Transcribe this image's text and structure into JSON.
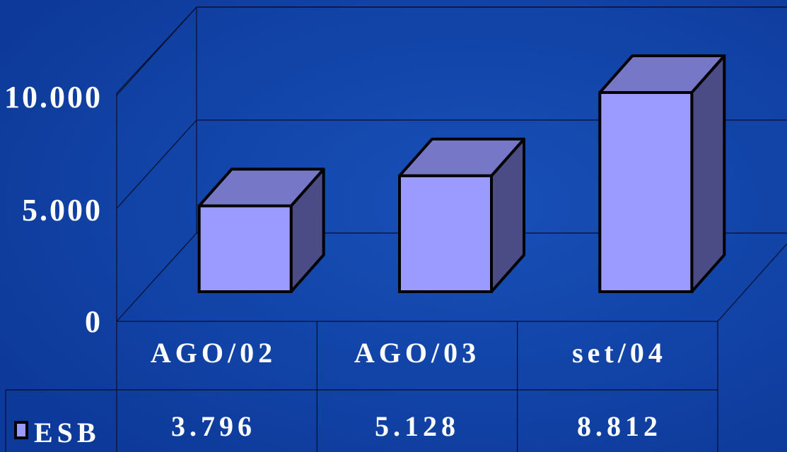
{
  "chart_data": {
    "type": "bar",
    "categories": [
      "AGO/02",
      "AGO/03",
      "set/04"
    ],
    "series": [
      {
        "name": "ESB",
        "values": [
          3796,
          5128,
          8812
        ]
      }
    ],
    "y_tick_labels": [
      "0",
      "5.000",
      "10.000"
    ],
    "ylim": [
      0,
      10000
    ],
    "grid": true,
    "style": "3d-column",
    "data_table": {
      "legend_label": "ESB",
      "cells": [
        "3.796",
        "5.128",
        "8.812"
      ]
    },
    "colors": {
      "background": "#0f3ea0",
      "bar_front": "#9b9bff",
      "bar_top": "#7777c7",
      "bar_side": "#4b4b86",
      "outline": "#000000"
    }
  }
}
